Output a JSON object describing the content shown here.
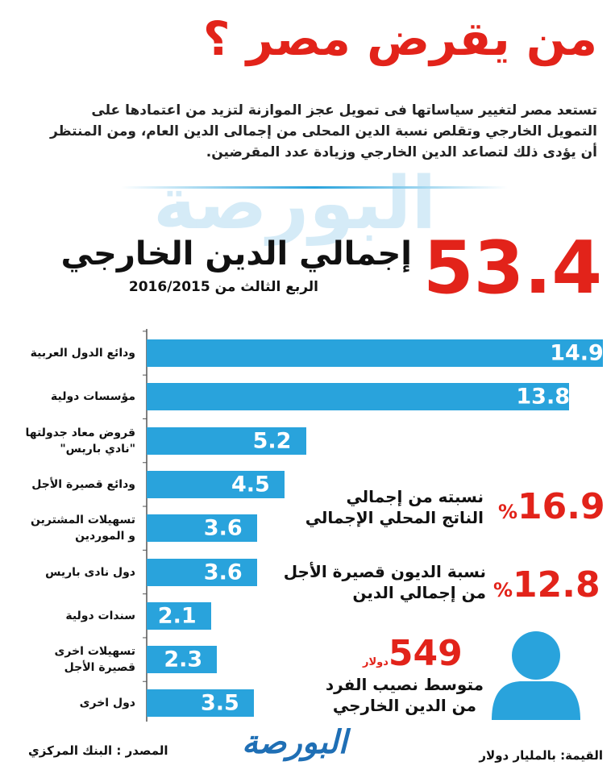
{
  "title": "من يقرض مصر ؟",
  "intro": [
    "تستعد مصر لتغيير سياساتها فى تمويل عجز الموازنة لتزيد من اعتمادها على",
    "التمويل الخارجي وتقلص نسبة الدين المحلى من إجمالى الدين العام، ومن المنتظر",
    "أن يؤدى ذلك لتصاعد الدين الخارجي وزيادة عدد المقرضين."
  ],
  "total": {
    "value": 53.4,
    "label": "إجمالي الدين الخارجي",
    "period": "الربع الثالث من 2016/2015"
  },
  "stats": [
    {
      "value": 16.9,
      "unit": "%",
      "label": [
        "نسبته من إجمالي",
        "الناتج المحلي الإجمالي"
      ]
    },
    {
      "value": 12.8,
      "unit": "%",
      "label": [
        "نسبة الديون قصيرة الأجل",
        "من إجمالي الدين"
      ]
    },
    {
      "value": 549,
      "unit": "دولار",
      "label": [
        "متوسط نصيب الفرد",
        "من الدين الخارجي"
      ]
    }
  ],
  "source": "المصدر : البنك المركزي",
  "unit_note": "القيمة: بالمليار دولار",
  "logo": "البورصة",
  "chart_data": {
    "type": "bar",
    "orientation": "horizontal",
    "categories": [
      "ودائع الدول العربية",
      "مؤسسات دولية",
      "قروض معاد جدولتها\n\"نادي باريس\"",
      "ودائع قصيرة الأجل",
      "تسهيلات المشترين\nو الموردين",
      "دول نادى باريس",
      "سندات دولية",
      "تسهيلات اخرى\nقصيرة الأجل",
      "دول اخرى"
    ],
    "values": [
      14.9,
      13.8,
      5.2,
      4.5,
      3.6,
      3.6,
      2.1,
      2.3,
      3.5
    ],
    "color": "#29a3dc",
    "xlim": [
      0,
      15
    ]
  }
}
